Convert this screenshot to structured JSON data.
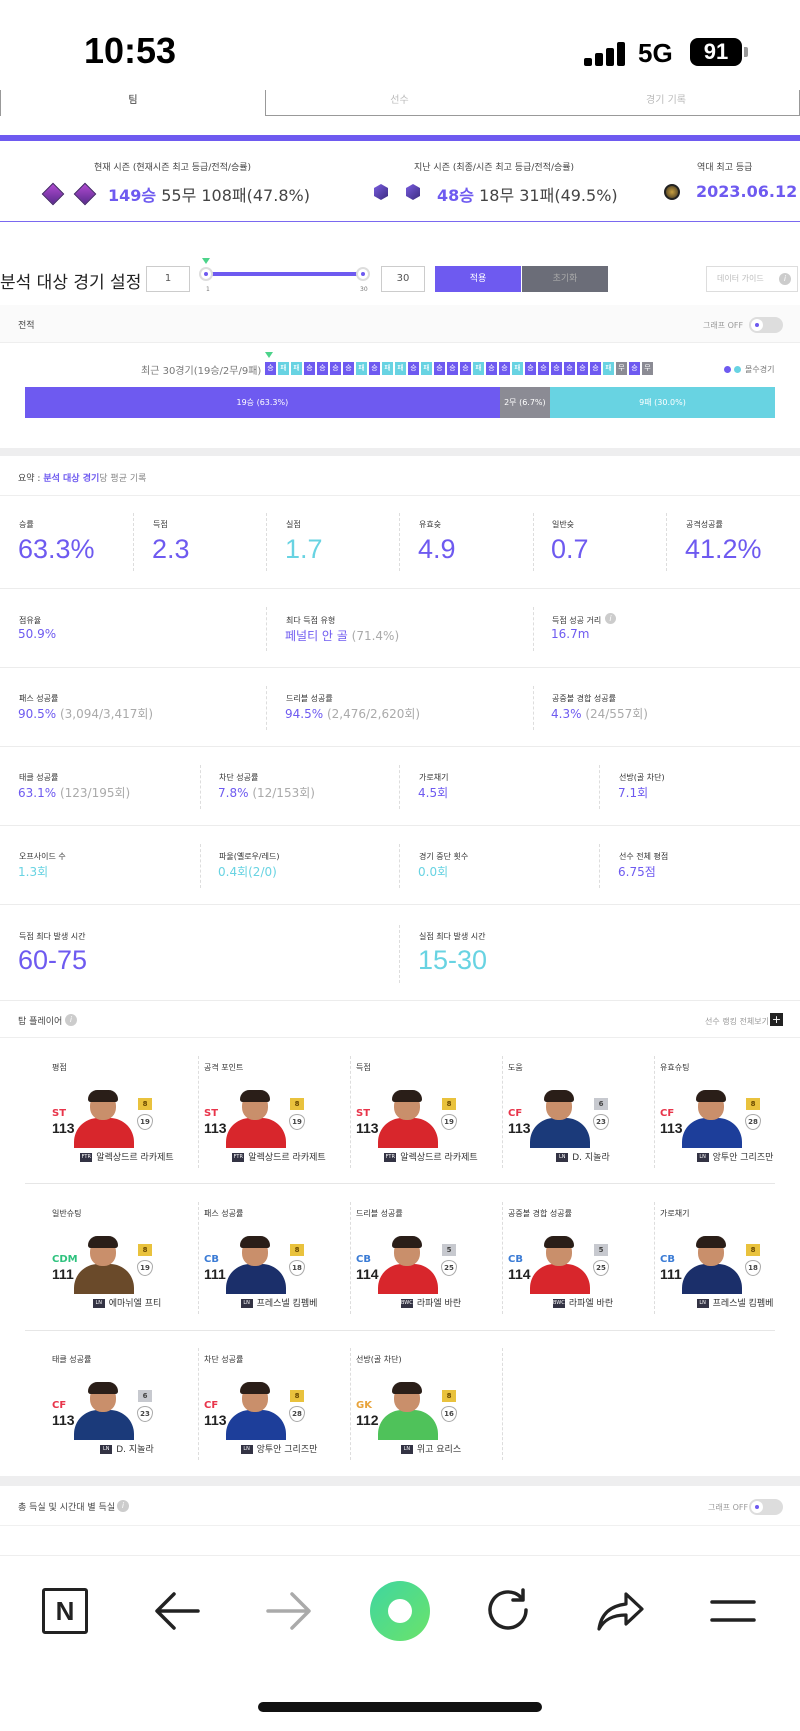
{
  "status_bar": {
    "time": "10:53",
    "network": "5G",
    "battery": "91"
  },
  "tabs": [
    {
      "label": "팀"
    },
    {
      "label": "선수"
    },
    {
      "label": "경기 기록"
    }
  ],
  "season": {
    "current_label": "현재 시즌 (현재시즌 최고 등급/전적/승률)",
    "current_wins": "149승",
    "current_rest": " 55무 108패(47.8%)",
    "last_label": "지난 시즌 (최종/시즌 최고 등급/전적/승률)",
    "last_wins": "48승",
    "last_rest": " 18무 31패(49.5%)",
    "best_label": "역대 최고 등급",
    "best_date": "2023.06.12"
  },
  "analysis": {
    "title": "분석 대상 경기 설정",
    "min_value": "1",
    "max_value": "30",
    "slider_min_label": "1",
    "slider_max_label": "30",
    "apply_label": "적용",
    "reset_label": "초기화",
    "guide_label": "데이터 가이드"
  },
  "record": {
    "title": "전적",
    "graph_toggle_label": "그래프 OFF",
    "recent_label": "최근 30경기(19승/2무/9패) :",
    "results": [
      "승",
      "패",
      "패",
      "승",
      "승",
      "승",
      "승",
      "패",
      "승",
      "패",
      "패",
      "승",
      "패",
      "승",
      "승",
      "승",
      "패",
      "승",
      "승",
      "패",
      "승",
      "승",
      "승",
      "승",
      "승",
      "승",
      "패",
      "무",
      "승",
      "무"
    ],
    "legend_label": "몰수경기",
    "win_bar_label": "19승 (63.3%)",
    "draw_bar_label": "2무 (6.7%)",
    "loss_bar_label": "9패 (30.0%)",
    "win_pct": 63.3,
    "draw_pct": 6.7,
    "loss_pct": 30.0,
    "colors": {
      "win": "#6e5af0",
      "draw": "#8b8b94",
      "loss": "#68d3e2"
    }
  },
  "summary": {
    "prefix": "요약 : ",
    "highlight": "분석 대상 경기",
    "suffix": "당 평균 기록",
    "top_stats": [
      {
        "label": "승률",
        "value": "63.3%"
      },
      {
        "label": "득점",
        "value": "2.3"
      },
      {
        "label": "실점",
        "value": "1.7"
      },
      {
        "label": "유효슛",
        "value": "4.9"
      },
      {
        "label": "일반슛",
        "value": "0.7"
      },
      {
        "label": "공격성공률",
        "value": "41.2%"
      }
    ],
    "row2": [
      {
        "label": "점유율",
        "value": "50.9%",
        "sub": ""
      },
      {
        "label": "최다 득점 유형",
        "value": "페널티 안 골",
        "sub": " (71.4%)"
      },
      {
        "label": "득점 성공 거리",
        "value": "16.7m",
        "sub": ""
      }
    ],
    "row3": [
      {
        "label": "패스 성공률",
        "value": "90.5%",
        "sub": " (3,094/3,417회)"
      },
      {
        "label": "드리블 성공률",
        "value": "94.5%",
        "sub": " (2,476/2,620회)"
      },
      {
        "label": "공중볼 경합 성공률",
        "value": "4.3%",
        "sub": " (24/557회)"
      }
    ],
    "row4": [
      {
        "label": "태클 성공률",
        "value": "63.1%",
        "sub": " (123/195회)"
      },
      {
        "label": "차단 성공률",
        "value": "7.8%",
        "sub": " (12/153회)"
      },
      {
        "label": "가로채기",
        "value": "4.5회",
        "sub": ""
      },
      {
        "label": "선방(골 차단)",
        "value": "7.1회",
        "sub": ""
      }
    ],
    "row5": [
      {
        "label": "오프사이드 수",
        "value": "1.3회",
        "sub": ""
      },
      {
        "label": "파울(옐로우/레드)",
        "value": "0.4회(2/0)",
        "sub": ""
      },
      {
        "label": "경기 중단 횟수",
        "value": "0.0회",
        "sub": ""
      },
      {
        "label": "선수 전체 평점",
        "value": "6.75점",
        "sub": ""
      }
    ],
    "time_goal_label": "득점 최다 발생 시간",
    "time_goal_value": "60-75",
    "time_conc_label": "실점 최다 발생 시간",
    "time_conc_value": "15-30"
  },
  "top_players": {
    "title": "탑 플레이어",
    "rank_link": "선수 랭킹 전체보기",
    "cards": [
      {
        "cat": "평점",
        "pos": "ST",
        "ovr": "113",
        "badge": "8",
        "shield": "19",
        "name": "알렉상드르 라카제트",
        "flag": "FTR",
        "shirt": "#d8262c",
        "pos_color": "#e8344a"
      },
      {
        "cat": "공격 포인트",
        "pos": "ST",
        "ovr": "113",
        "badge": "8",
        "shield": "19",
        "name": "알렉상드르 라카제트",
        "flag": "FTR",
        "shirt": "#d8262c",
        "pos_color": "#e8344a"
      },
      {
        "cat": "득점",
        "pos": "ST",
        "ovr": "113",
        "badge": "8",
        "shield": "19",
        "name": "알렉상드르 라카제트",
        "flag": "FTR",
        "shirt": "#d8262c",
        "pos_color": "#e8344a"
      },
      {
        "cat": "도움",
        "pos": "CF",
        "ovr": "113",
        "badge": "6",
        "shield": "23",
        "name": "D. 지놀라",
        "flag": "LN",
        "shirt": "#1b3a7a",
        "pos_color": "#e8344a"
      },
      {
        "cat": "유효슈팅",
        "pos": "CF",
        "ovr": "113",
        "badge": "8",
        "shield": "28",
        "name": "앙투안 그리즈만",
        "flag": "LN",
        "shirt": "#1d3e9a",
        "pos_color": "#e8344a"
      },
      {
        "cat": "일반슈팅",
        "pos": "CDM",
        "ovr": "111",
        "badge": "8",
        "shield": "19",
        "name": "에마뉘엘 프티",
        "flag": "LN",
        "shirt": "#6a4a2a",
        "pos_color": "#2ec27e"
      },
      {
        "cat": "패스 성공률",
        "pos": "CB",
        "ovr": "111",
        "badge": "8",
        "shield": "18",
        "name": "프레스넬 킴펨베",
        "flag": "LN",
        "shirt": "#1b2f6a",
        "pos_color": "#3a7bd5"
      },
      {
        "cat": "드리블 성공률",
        "pos": "CB",
        "ovr": "114",
        "badge": "5",
        "shield": "25",
        "name": "라파엘 바란",
        "flag": "BWC",
        "shirt": "#d8262c",
        "pos_color": "#3a7bd5"
      },
      {
        "cat": "공중볼 경합 성공률",
        "pos": "CB",
        "ovr": "114",
        "badge": "5",
        "shield": "25",
        "name": "라파엘 바란",
        "flag": "BWC",
        "shirt": "#d8262c",
        "pos_color": "#3a7bd5"
      },
      {
        "cat": "가로채기",
        "pos": "CB",
        "ovr": "111",
        "badge": "8",
        "shield": "18",
        "name": "프레스넬 킴펨베",
        "flag": "LN",
        "shirt": "#1b2f6a",
        "pos_color": "#3a7bd5"
      },
      {
        "cat": "태클 성공률",
        "pos": "CF",
        "ovr": "113",
        "badge": "6",
        "shield": "23",
        "name": "D. 지놀라",
        "flag": "LN",
        "shirt": "#1b3a7a",
        "pos_color": "#e8344a"
      },
      {
        "cat": "차단 성공률",
        "pos": "CF",
        "ovr": "113",
        "badge": "8",
        "shield": "28",
        "name": "앙투안 그리즈만",
        "flag": "LN",
        "shirt": "#1d3e9a",
        "pos_color": "#e8344a"
      },
      {
        "cat": "선방(골 차단)",
        "pos": "GK",
        "ovr": "112",
        "badge": "8",
        "shield": "16",
        "name": "위고 요리스",
        "flag": "LN",
        "shirt": "#4fc25a",
        "pos_color": "#e8a33a"
      }
    ]
  },
  "goals_section": {
    "title": "총 득실 및 시간대 별 득실",
    "graph_toggle_label": "그래프 OFF"
  },
  "bottom_nav": {
    "icons": [
      "n-logo-icon",
      "back-arrow-icon",
      "forward-arrow-icon",
      "home-circle-icon",
      "refresh-icon",
      "share-icon",
      "menu-icon"
    ]
  }
}
